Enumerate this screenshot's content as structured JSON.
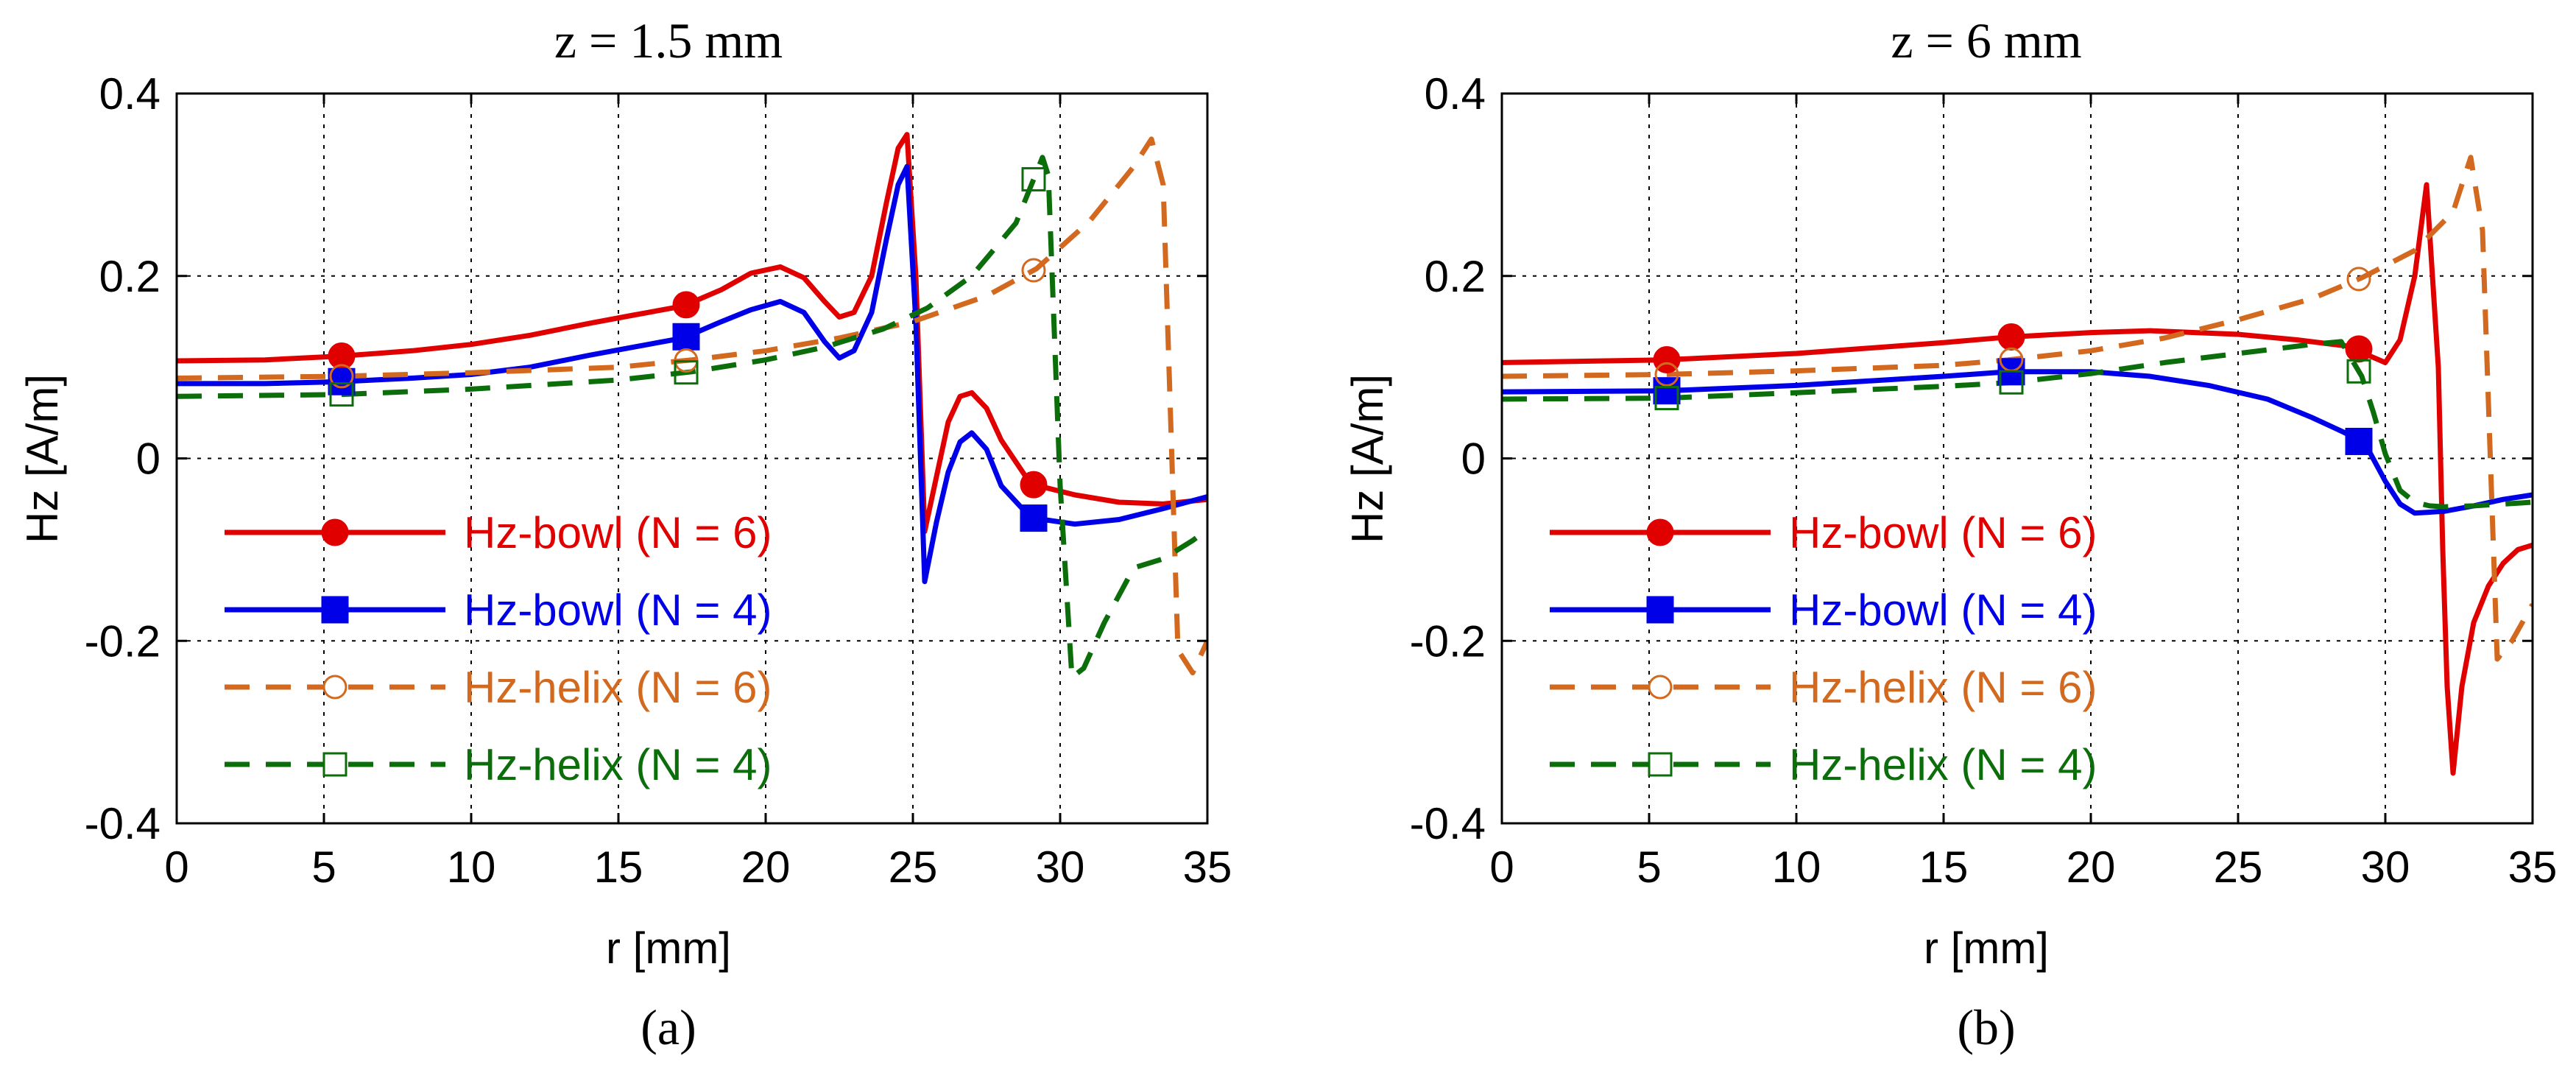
{
  "chart_data": [
    {
      "type": "line",
      "title": "z = 1.5 mm",
      "caption": "(a)",
      "xlabel": "r [mm]",
      "ylabel": "Hz [A/m]",
      "xlim": [
        0,
        35
      ],
      "ylim": [
        -0.4,
        0.4
      ],
      "xticks": [
        "0",
        "5",
        "10",
        "15",
        "20",
        "25",
        "30",
        "35"
      ],
      "yticks": [
        "0.4",
        "0.2",
        "0",
        "-0.2",
        "-0.4"
      ],
      "grid": true,
      "legend_position": "lower-left",
      "series": [
        {
          "name": "Hz-bowl (N = 6)",
          "color": "#e00000",
          "dash": "solid",
          "marker": "filled-circle",
          "x": [
            0,
            3,
            5.5,
            8,
            10,
            12,
            14,
            15.5,
            17.2,
            18.5,
            19.5,
            20.5,
            21.3,
            22,
            22.5,
            23,
            23.6,
            24.1,
            24.5,
            24.8,
            25.1,
            25.4,
            25.8,
            26.2,
            26.6,
            27,
            27.5,
            28,
            29,
            30.5,
            32,
            33.5,
            35
          ],
          "y": [
            0.107,
            0.108,
            0.112,
            0.118,
            0.125,
            0.135,
            0.148,
            0.157,
            0.167,
            0.185,
            0.203,
            0.21,
            0.198,
            0.172,
            0.155,
            0.16,
            0.2,
            0.28,
            0.34,
            0.355,
            0.2,
            -0.08,
            -0.02,
            0.04,
            0.068,
            0.072,
            0.055,
            0.02,
            -0.028,
            -0.04,
            -0.048,
            -0.05,
            -0.045
          ]
        },
        {
          "name": "Hz-bowl (N = 4)",
          "color": "#0000e8",
          "dash": "solid",
          "marker": "filled-square",
          "x": [
            0,
            3,
            5.5,
            8,
            10,
            12,
            14,
            15.5,
            17.2,
            18.5,
            19.5,
            20.5,
            21.3,
            22,
            22.5,
            23,
            23.6,
            24.1,
            24.5,
            24.8,
            25.1,
            25.4,
            25.8,
            26.2,
            26.6,
            27,
            27.5,
            28,
            29,
            30.5,
            32,
            33.5,
            35
          ],
          "y": [
            0.082,
            0.082,
            0.084,
            0.088,
            0.092,
            0.1,
            0.113,
            0.122,
            0.132,
            0.15,
            0.163,
            0.172,
            0.16,
            0.128,
            0.11,
            0.118,
            0.16,
            0.24,
            0.3,
            0.32,
            0.15,
            -0.135,
            -0.07,
            -0.015,
            0.018,
            0.028,
            0.01,
            -0.03,
            -0.065,
            -0.072,
            -0.067,
            -0.055,
            -0.042
          ]
        },
        {
          "name": "Hz-helix (N = 6)",
          "color": "#d2691e",
          "dash": "dashed",
          "marker": "open-circle",
          "x": [
            0,
            5.5,
            10,
            15,
            17.5,
            20,
            22.5,
            25,
            27.5,
            29.2,
            31,
            32.5,
            33.1,
            33.5,
            34,
            34.5,
            35
          ],
          "y": [
            0.088,
            0.09,
            0.094,
            0.1,
            0.108,
            0.118,
            0.132,
            0.15,
            0.178,
            0.208,
            0.26,
            0.32,
            0.35,
            0.3,
            -0.21,
            -0.235,
            -0.2
          ]
        },
        {
          "name": "Hz-helix (N = 4)",
          "color": "#0b6e0b",
          "dash": "dashed",
          "marker": "open-square",
          "x": [
            0,
            5.5,
            10,
            15,
            17.5,
            20,
            22,
            24,
            25.5,
            27,
            28.5,
            29.4,
            29.6,
            30,
            30.4,
            30.8,
            31.5,
            32.5,
            33.5,
            34.5,
            35
          ],
          "y": [
            0.068,
            0.07,
            0.076,
            0.086,
            0.095,
            0.108,
            0.122,
            0.142,
            0.165,
            0.2,
            0.258,
            0.33,
            0.31,
            -0.03,
            -0.24,
            -0.23,
            -0.18,
            -0.12,
            -0.11,
            -0.09,
            -0.078
          ]
        }
      ]
    },
    {
      "type": "line",
      "title": "z = 6 mm",
      "caption": "(b)",
      "xlabel": "r [mm]",
      "ylabel": "Hz [A/m]",
      "xlim": [
        0,
        35
      ],
      "ylim": [
        -0.4,
        0.4
      ],
      "xticks": [
        "0",
        "5",
        "10",
        "15",
        "20",
        "25",
        "30",
        "35"
      ],
      "yticks": [
        "0.4",
        "0.2",
        "0",
        "-0.2",
        "-0.4"
      ],
      "grid": true,
      "legend_position": "lower-left",
      "series": [
        {
          "name": "Hz-bowl (N = 6)",
          "color": "#e00000",
          "dash": "solid",
          "marker": "filled-circle",
          "x": [
            0,
            5.5,
            10,
            15,
            17.2,
            20,
            22,
            25,
            27,
            29,
            29.5,
            30,
            30.5,
            31,
            31.4,
            31.8,
            31.95,
            32.1,
            32.3,
            32.6,
            33,
            33.5,
            34,
            34.5,
            35
          ],
          "y": [
            0.105,
            0.108,
            0.115,
            0.127,
            0.133,
            0.138,
            0.14,
            0.136,
            0.13,
            0.122,
            0.112,
            0.105,
            0.13,
            0.2,
            0.3,
            0.1,
            -0.1,
            -0.25,
            -0.345,
            -0.25,
            -0.18,
            -0.14,
            -0.115,
            -0.1,
            -0.095
          ]
        },
        {
          "name": "Hz-bowl (N = 4)",
          "color": "#0000e8",
          "dash": "solid",
          "marker": "filled-square",
          "x": [
            0,
            5.5,
            10,
            15,
            17.2,
            20,
            22,
            24,
            26,
            27.5,
            28.5,
            29,
            29.5,
            30,
            30.5,
            31,
            32,
            33,
            34,
            35
          ],
          "y": [
            0.073,
            0.074,
            0.08,
            0.09,
            0.095,
            0.095,
            0.09,
            0.08,
            0.065,
            0.045,
            0.03,
            0.022,
            0.005,
            -0.025,
            -0.05,
            -0.06,
            -0.058,
            -0.052,
            -0.045,
            -0.04
          ]
        },
        {
          "name": "Hz-helix (N = 6)",
          "color": "#d2691e",
          "dash": "dashed",
          "marker": "open-circle",
          "x": [
            0,
            5.5,
            10,
            15,
            17.2,
            20,
            22.5,
            25,
            27.5,
            29.2,
            31,
            32.3,
            32.9,
            33.3,
            33.8,
            34.3,
            35
          ],
          "y": [
            0.09,
            0.092,
            0.096,
            0.102,
            0.108,
            0.118,
            0.132,
            0.152,
            0.175,
            0.198,
            0.228,
            0.27,
            0.33,
            0.25,
            -0.22,
            -0.2,
            -0.16
          ]
        },
        {
          "name": "Hz-helix (N = 4)",
          "color": "#0b6e0b",
          "dash": "dashed",
          "marker": "open-square",
          "x": [
            0,
            5.5,
            10,
            15,
            17.2,
            20,
            22.5,
            25,
            27.5,
            28.5,
            29.2,
            29.6,
            30,
            30.5,
            31,
            31.5,
            32,
            33,
            34,
            35
          ],
          "y": [
            0.065,
            0.066,
            0.072,
            0.079,
            0.083,
            0.093,
            0.105,
            0.115,
            0.125,
            0.128,
            0.09,
            0.05,
            0.005,
            -0.035,
            -0.048,
            -0.052,
            -0.053,
            -0.052,
            -0.05,
            -0.048
          ]
        }
      ]
    }
  ]
}
